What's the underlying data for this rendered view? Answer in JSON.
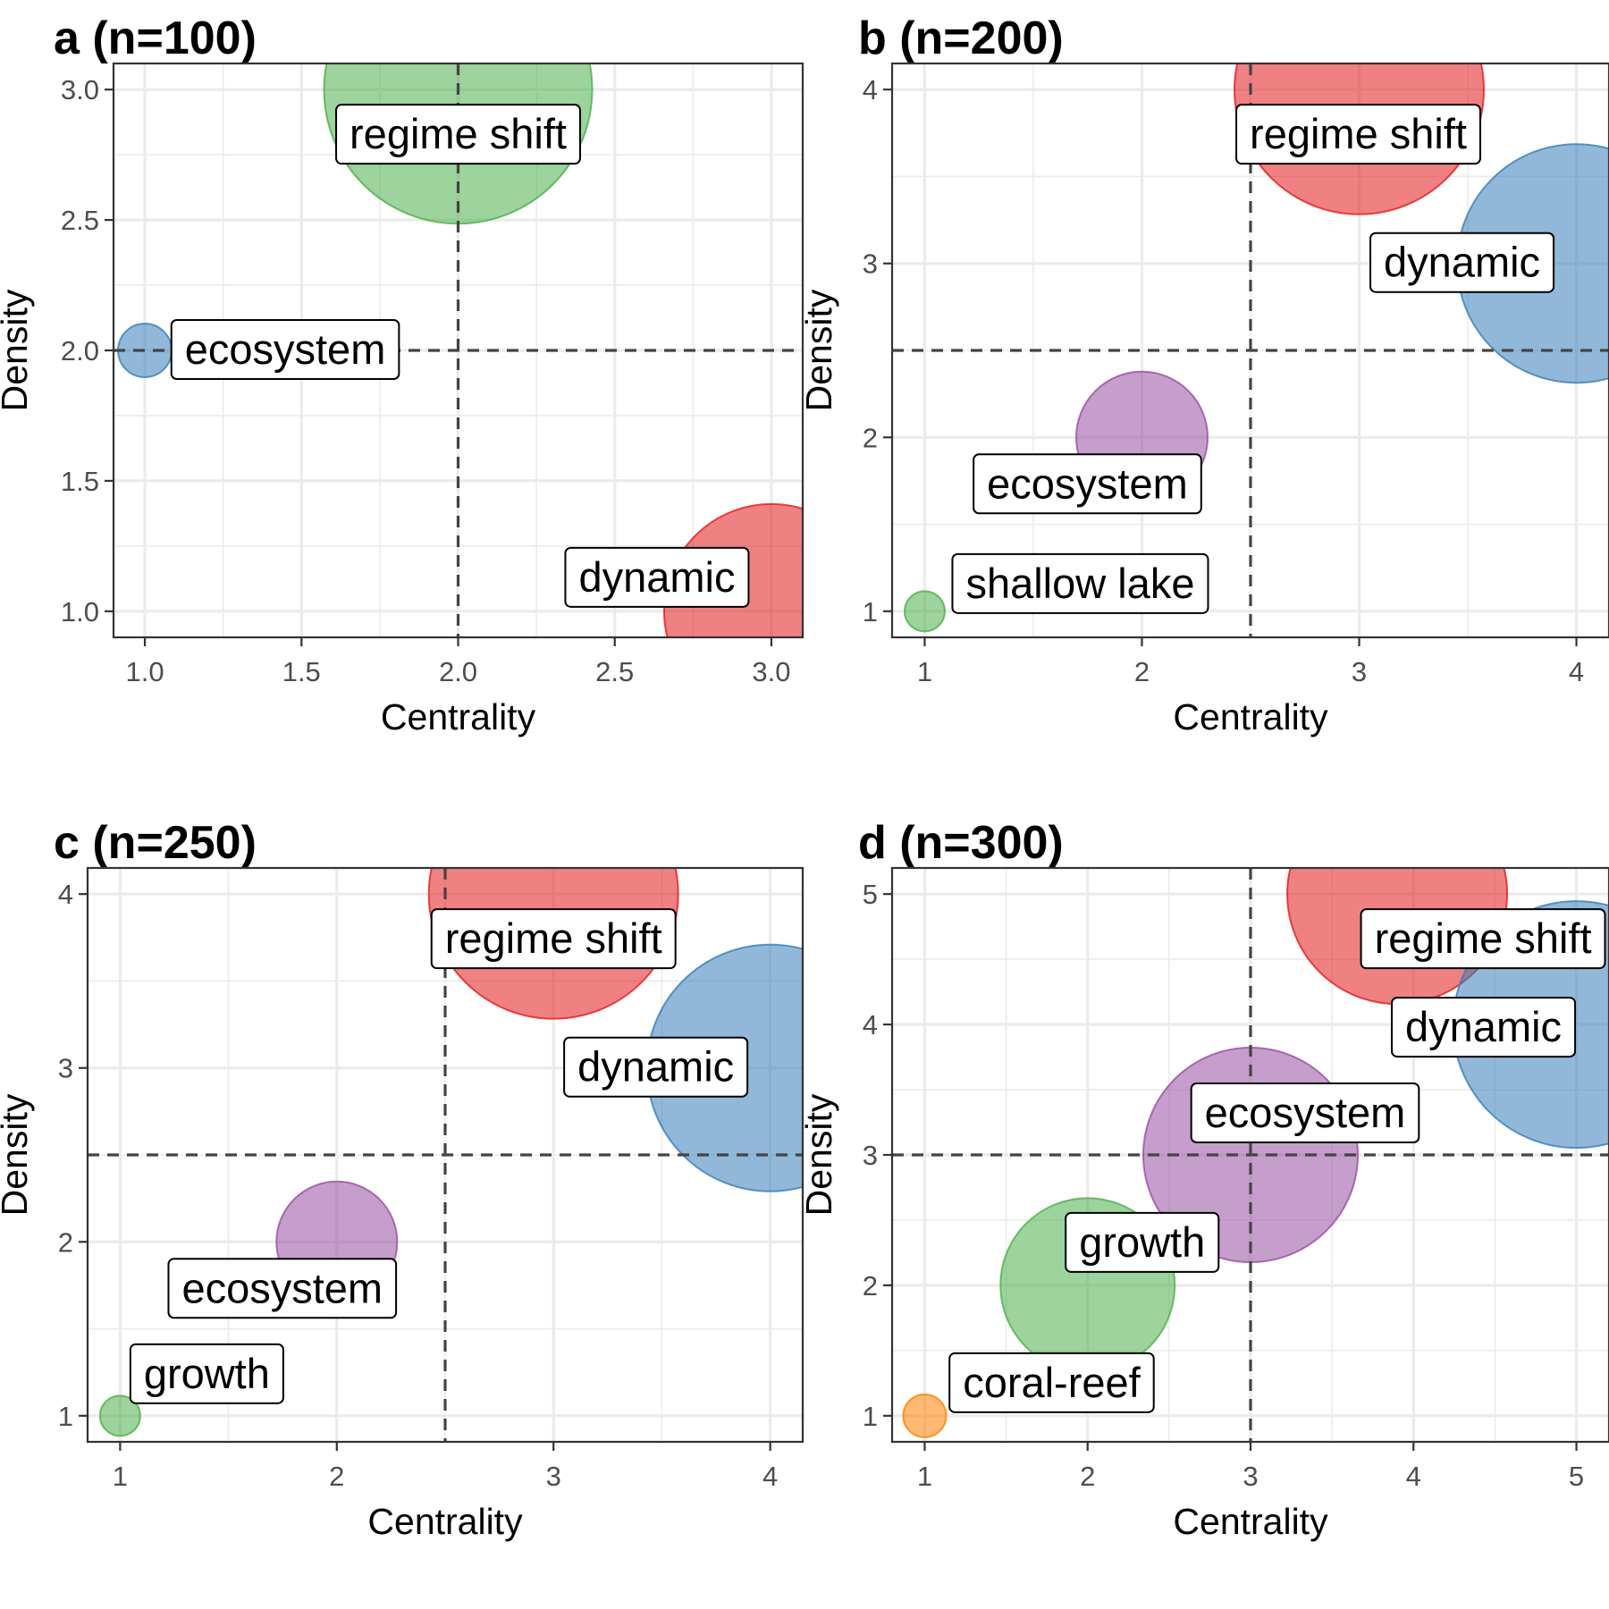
{
  "colors": {
    "red": "#E41A1C",
    "blue": "#377EB8",
    "green": "#4DAF4A",
    "purple": "#984EA3",
    "orange": "#FF7F00"
  },
  "chart_data": [
    {
      "type": "scatter",
      "title": "a (n=100)",
      "xlabel": "Centrality",
      "ylabel": "Density",
      "xlim": [
        0.9,
        3.1
      ],
      "ylim": [
        0.9,
        3.1
      ],
      "xticks": [
        1.0,
        1.5,
        2.0,
        2.5,
        3.0
      ],
      "yticks": [
        1.0,
        1.5,
        2.0,
        2.5,
        3.0
      ],
      "tick_format": "0.0",
      "ref_x": 2.0,
      "ref_y": 2.0,
      "grid": true,
      "points": [
        {
          "label": "regime shift",
          "x": 2.0,
          "y": 3.0,
          "size": 1.0,
          "color": "#4DAF4A"
        },
        {
          "label": "ecosystem",
          "x": 1.0,
          "y": 2.0,
          "size": 0.2,
          "color": "#377EB8"
        },
        {
          "label": "dynamic",
          "x": 3.0,
          "y": 1.0,
          "size": 0.8,
          "color": "#E41A1C"
        }
      ]
    },
    {
      "type": "scatter",
      "title": "b (n=200)",
      "xlabel": "Centrality",
      "ylabel": "Density",
      "xlim": [
        0.85,
        4.15
      ],
      "ylim": [
        0.85,
        4.15
      ],
      "xticks": [
        1,
        2,
        3,
        4
      ],
      "yticks": [
        1,
        2,
        3,
        4
      ],
      "tick_format": "0",
      "ref_x": 2.5,
      "ref_y": 2.5,
      "grid": true,
      "points": [
        {
          "label": "regime shift",
          "x": 3.0,
          "y": 4.0,
          "size": 0.93,
          "color": "#E41A1C"
        },
        {
          "label": "dynamic",
          "x": 4.0,
          "y": 3.0,
          "size": 0.89,
          "color": "#377EB8"
        },
        {
          "label": "ecosystem",
          "x": 2.0,
          "y": 2.0,
          "size": 0.49,
          "color": "#984EA3"
        },
        {
          "label": "shallow lake",
          "x": 1.0,
          "y": 1.0,
          "size": 0.15,
          "color": "#4DAF4A"
        }
      ]
    },
    {
      "type": "scatter",
      "title": "c (n=250)",
      "xlabel": "Centrality",
      "ylabel": "Density",
      "xlim": [
        0.85,
        4.15
      ],
      "ylim": [
        0.85,
        4.15
      ],
      "xticks": [
        1,
        2,
        3,
        4
      ],
      "yticks": [
        1,
        2,
        3,
        4
      ],
      "tick_format": "0",
      "ref_x": 2.5,
      "ref_y": 2.5,
      "grid": true,
      "points": [
        {
          "label": "regime shift",
          "x": 3.0,
          "y": 4.0,
          "size": 0.93,
          "color": "#E41A1C"
        },
        {
          "label": "dynamic",
          "x": 4.0,
          "y": 3.0,
          "size": 0.92,
          "color": "#377EB8"
        },
        {
          "label": "ecosystem",
          "x": 2.0,
          "y": 2.0,
          "size": 0.45,
          "color": "#984EA3"
        },
        {
          "label": "growth",
          "x": 1.0,
          "y": 1.0,
          "size": 0.15,
          "color": "#4DAF4A"
        }
      ]
    },
    {
      "type": "scatter",
      "title": "d (n=300)",
      "xlabel": "Centrality",
      "ylabel": "Density",
      "xlim": [
        0.8,
        5.2
      ],
      "ylim": [
        0.8,
        5.2
      ],
      "xticks": [
        1,
        2,
        3,
        4,
        5
      ],
      "yticks": [
        1,
        2,
        3,
        4,
        5
      ],
      "tick_format": "0",
      "ref_x": 3.0,
      "ref_y": 3.0,
      "grid": true,
      "points": [
        {
          "label": "regime shift",
          "x": 3.9,
          "y": 5.0,
          "size": 0.82,
          "color": "#E41A1C"
        },
        {
          "label": "dynamic",
          "x": 5.0,
          "y": 4.0,
          "size": 0.92,
          "color": "#377EB8"
        },
        {
          "label": "ecosystem",
          "x": 3.0,
          "y": 3.0,
          "size": 0.8,
          "color": "#984EA3"
        },
        {
          "label": "growth",
          "x": 2.0,
          "y": 2.0,
          "size": 0.65,
          "color": "#4DAF4A"
        },
        {
          "label": "coral-reef",
          "x": 1.0,
          "y": 1.0,
          "size": 0.16,
          "color": "#FF7F00"
        }
      ]
    }
  ]
}
